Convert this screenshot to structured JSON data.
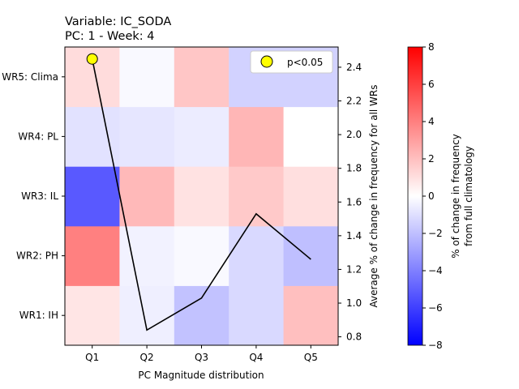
{
  "title": {
    "line1": "Variable: IC_SODA",
    "line2": "PC: 1 - Week: 4"
  },
  "chart_data": {
    "type": "heatmap",
    "title": "Variable: IC_SODA\nPC: 1 - Week: 4",
    "xlabel": "PC Magnitude distribution",
    "ylabel_left": "",
    "ylabel_right": "Average % of change in frequency for all WRs",
    "x_categories": [
      "Q1",
      "Q2",
      "Q3",
      "Q4",
      "Q5"
    ],
    "y_categories": [
      "WR1: IH",
      "WR2: PH",
      "WR3: IL",
      "WR4: PL",
      "WR5: Clima"
    ],
    "matrix": [
      [
        0.8,
        -0.5,
        -1.9,
        -1.2,
        2.0
      ],
      [
        4.0,
        -0.4,
        -0.2,
        -1.2,
        -2.0
      ],
      [
        -5.2,
        2.2,
        0.9,
        1.7,
        1.0
      ],
      [
        -0.9,
        -0.8,
        -0.6,
        2.3,
        0.0
      ],
      [
        1.1,
        -0.2,
        1.8,
        -1.4,
        -1.4
      ]
    ],
    "colorbar": {
      "label_line1": "% of change in frequency",
      "label_line2": "from full climatology",
      "vmin": -8,
      "vmax": 8,
      "cmap": "bwr",
      "ticks": [
        "8",
        "6",
        "4",
        "2",
        "0",
        "−2",
        "−4",
        "−6",
        "−8"
      ]
    },
    "line_series": {
      "x": [
        "Q1",
        "Q2",
        "Q3",
        "Q4",
        "Q5"
      ],
      "y": [
        2.45,
        0.84,
        1.03,
        1.53,
        1.26
      ],
      "color": "#000000",
      "ylim": [
        0.75,
        2.52
      ],
      "yticks": [
        "0.8",
        "1.0",
        "1.2",
        "1.4",
        "1.6",
        "1.8",
        "2.0",
        "2.2",
        "2.4"
      ]
    },
    "significance": {
      "legend_label": "p<0.05",
      "marker_color": "#ffff00",
      "points": [
        {
          "x": "Q1",
          "y": "WR5: Clima"
        }
      ]
    }
  }
}
